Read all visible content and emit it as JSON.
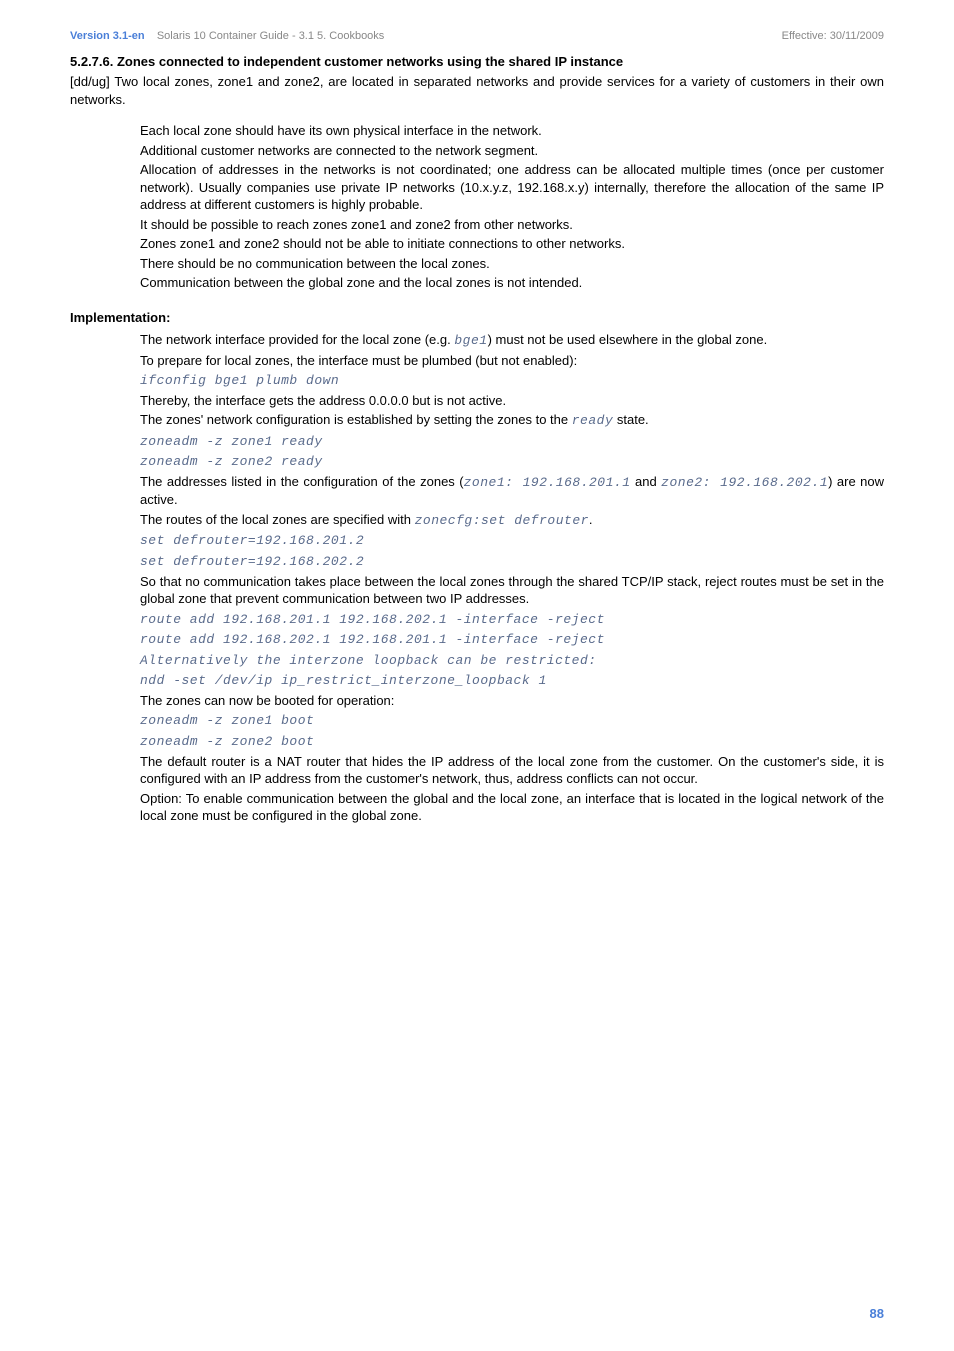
{
  "header": {
    "version": "Version 3.1-en",
    "title_gray": "Solaris 10 Container Guide - 3.1  5. Cookbooks",
    "effective": "Effective: 30/11/2009"
  },
  "section": {
    "number_title": "5.2.7.6. Zones connected to independent customer networks using the shared IP instance",
    "intro": "[dd/ug] Two local zones, zone1 and zone2, are located in separated networks and provide services for a variety of customers in their own networks.",
    "bullets": {
      "b1": "Each local zone should have its own physical interface in the network.",
      "b2": "Additional customer networks are connected to the network segment.",
      "b3": "Allocation of addresses in the networks is not coordinated; one address can be allocated multiple times (once per customer network). Usually companies use private IP networks (10.x.y.z, 192.168.x.y) internally, therefore the allocation of the same IP address at different customers is highly probable.",
      "b4": "It should be possible to reach zones zone1 and zone2 from other networks.",
      "b5": "Zones zone1 and zone2 should not be able to initiate connections to other networks.",
      "b6": "There should be no communication between the local zones.",
      "b7": "Communication between the global zone and the local zones is not intended."
    }
  },
  "impl": {
    "heading": "Implementation:",
    "p1a": "The network interface provided for the local zone (e.g. ",
    "p1code": "bge1",
    "p1b": ") must not be used elsewhere in the global zone.",
    "p2": "To prepare for local zones, the interface must be plumbed (but not enabled):",
    "c1": "ifconfig bge1 plumb down",
    "p3": "Thereby, the interface gets the address 0.0.0.0 but is not active.",
    "p4a": "The zones' network configuration is established by setting the zones to the ",
    "p4code": "ready",
    "p4b": " state.",
    "c2": "zoneadm -z zone1 ready",
    "c3": "zoneadm -z zone2 ready",
    "p5a": "The addresses listed in the configuration of the zones (",
    "p5code1": "zone1: 192.168.201.1",
    "p5mid": " and ",
    "p5code2": "zone2: 192.168.202.1",
    "p5b": ") are now active.",
    "p6a": "The routes of the local zones are specified with ",
    "p6code": "zonecfg:set defrouter",
    "p6b": ".",
    "c4": "set defrouter=192.168.201.2",
    "c5": "set defrouter=192.168.202.2",
    "p7": "So that no communication takes place between the local zones through the shared TCP/IP stack, reject routes must be set in the global zone that prevent communication between two IP addresses.",
    "c6": "route add 192.168.201.1 192.168.202.1 -interface -reject",
    "c7": "route add 192.168.202.1 192.168.201.1 -interface -reject",
    "c8": "Alternatively the interzone loopback can be restricted:",
    "c9": "ndd -set /dev/ip ip_restrict_interzone_loopback 1",
    "p8": "The zones can now be booted for operation:",
    "c10": "zoneadm -z zone1 boot",
    "c11": "zoneadm -z zone2 boot",
    "p9": "The default router is a NAT router that hides the IP address of the local zone from the customer. On the customer's side, it is configured with an IP address from the customer's network, thus, address conflicts can not occur.",
    "p10": "Option: To enable communication between the global and the local zone, an interface that is located in the logical network of the local zone must be configured in the global zone."
  },
  "page_number": "88"
}
